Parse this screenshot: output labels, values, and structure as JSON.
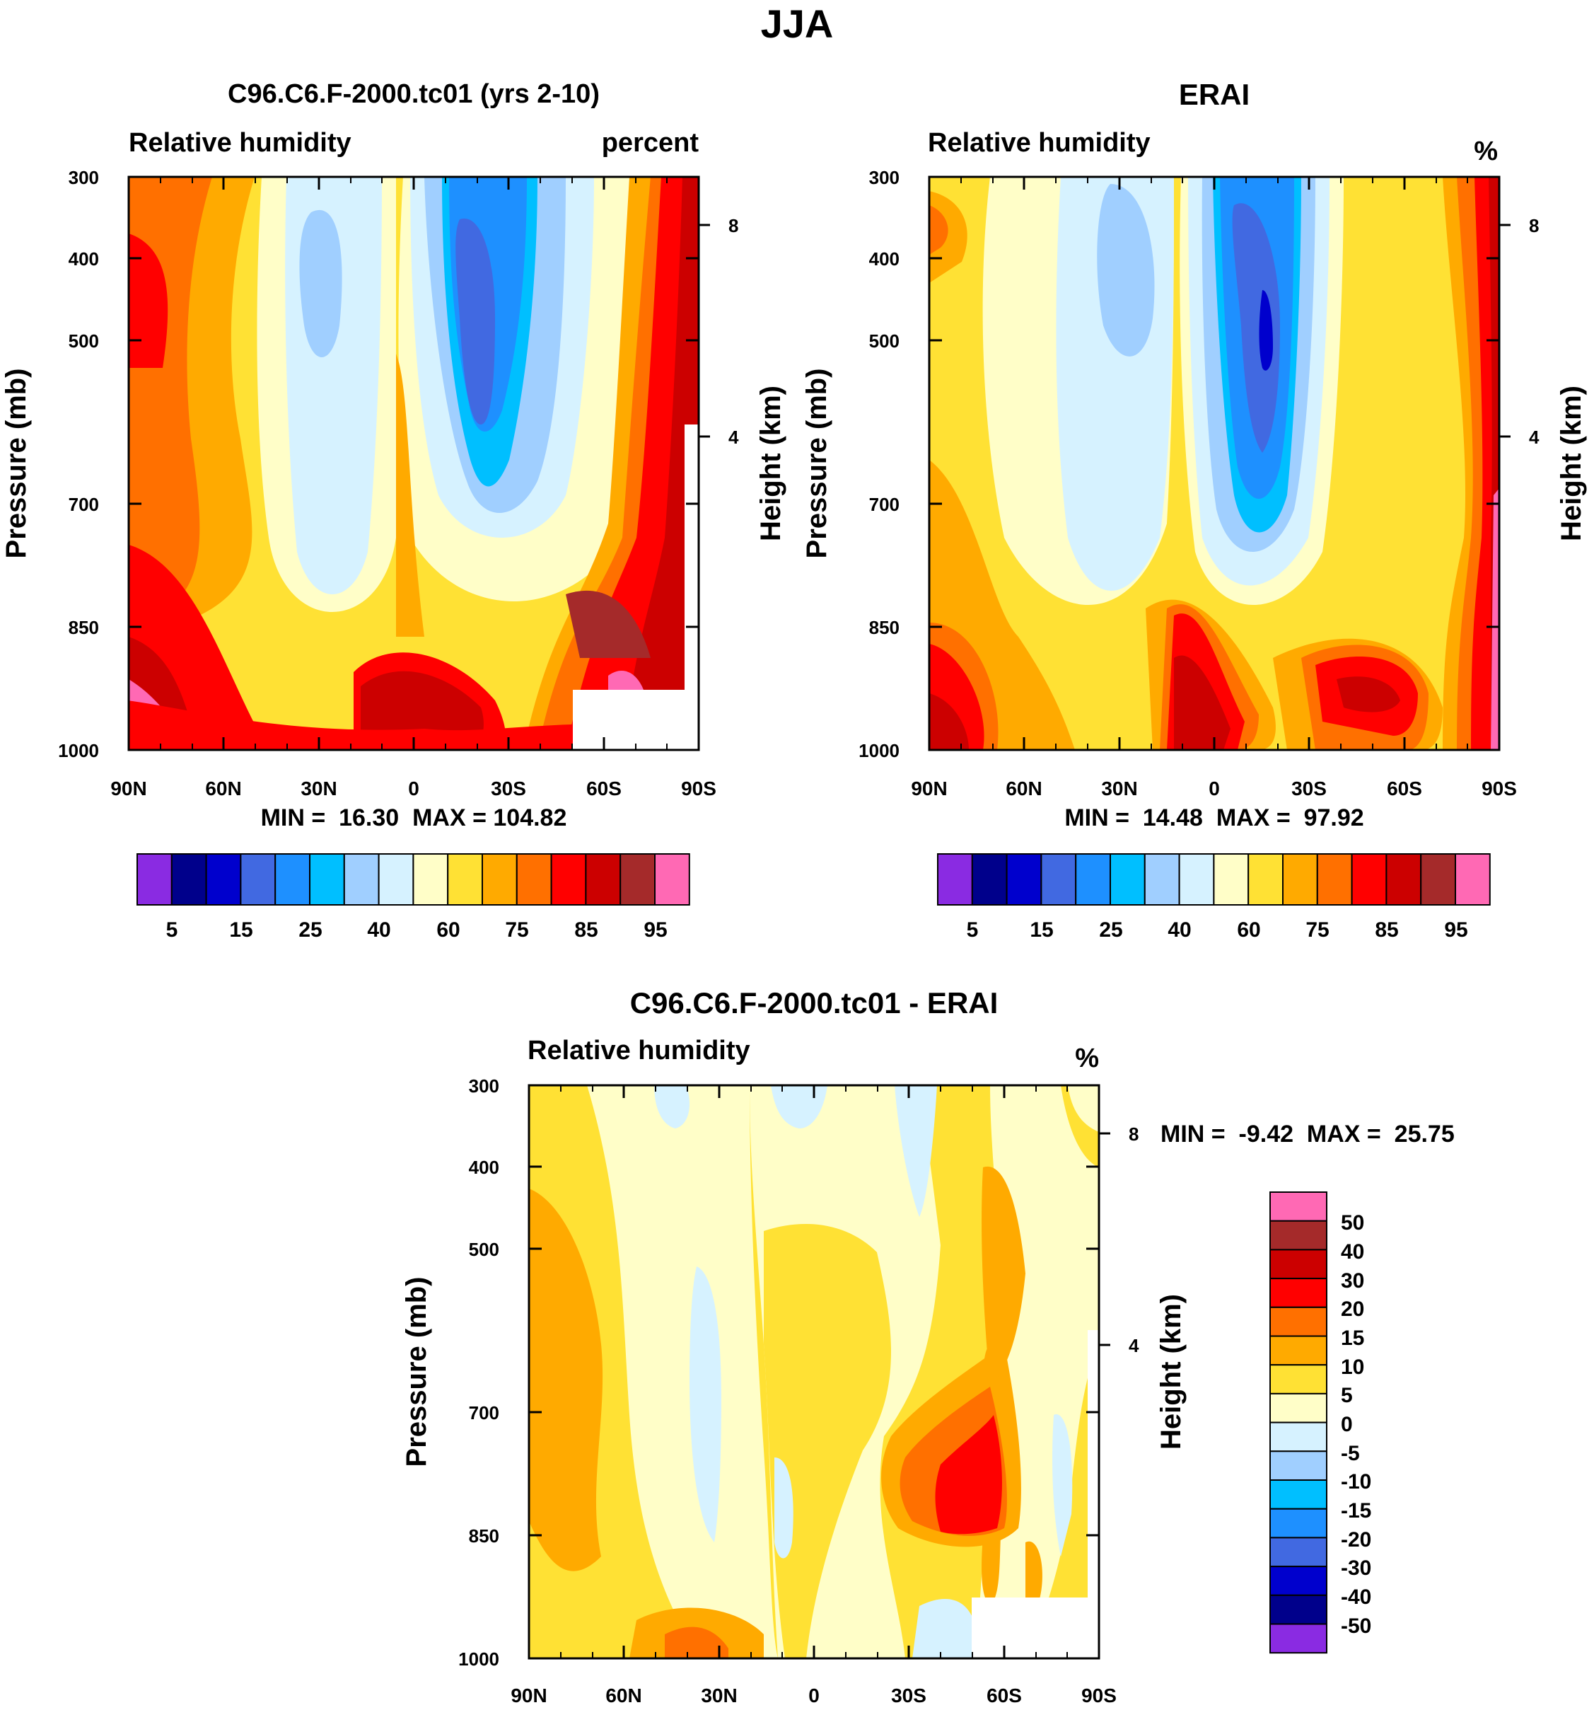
{
  "main_title": "JJA",
  "x_ticks": [
    "90N",
    "60N",
    "30N",
    "0",
    "30S",
    "60S",
    "90S"
  ],
  "pressure_ticks": [
    "300",
    "400",
    "500",
    "700",
    "850",
    "1000"
  ],
  "height_ticks": [
    "8",
    "4"
  ],
  "chart_data": [
    {
      "type": "heatmap",
      "title": "C96.C6.F-2000.tc01 (yrs 2-10)",
      "variable_label": "Relative humidity",
      "units_label": "percent",
      "ylabel": "Pressure (mb)",
      "ylabel_right": "Height (km)",
      "stats": "MIN =  16.30  MAX = 104.82",
      "min": 16.3,
      "max": 104.82,
      "colorbar_labels": [
        "5",
        "15",
        "25",
        "40",
        "60",
        "75",
        "85",
        "95"
      ],
      "xlim": [
        90,
        -90
      ],
      "ylim": [
        1000,
        300
      ]
    },
    {
      "type": "heatmap",
      "title": "ERAI",
      "variable_label": "Relative humidity",
      "units_label": "%",
      "ylabel": "Pressure (mb)",
      "ylabel_right": "Height (km)",
      "stats": "MIN =  14.48  MAX =  97.92",
      "min": 14.48,
      "max": 97.92,
      "colorbar_labels": [
        "5",
        "15",
        "25",
        "40",
        "60",
        "75",
        "85",
        "95"
      ],
      "xlim": [
        90,
        -90
      ],
      "ylim": [
        1000,
        300
      ]
    },
    {
      "type": "heatmap",
      "title": "C96.C6.F-2000.tc01 - ERAI",
      "variable_label": "Relative humidity",
      "units_label": "%",
      "ylabel": "Pressure (mb)",
      "ylabel_right": "Height (km)",
      "stats": "MIN =  -9.42  MAX =  25.75",
      "min": -9.42,
      "max": 25.75,
      "colorbar_labels": [
        "50",
        "40",
        "30",
        "20",
        "15",
        "10",
        "5",
        "0",
        "-5",
        "-10",
        "-15",
        "-20",
        "-30",
        "-40",
        "-50"
      ],
      "xlim": [
        90,
        -90
      ],
      "ylim": [
        1000,
        300
      ]
    }
  ],
  "colors": {
    "rh_scale": [
      "#8a2be2",
      "#00008b",
      "#0000cd",
      "#4169e1",
      "#1e90ff",
      "#00bfff",
      "#a0cfff",
      "#d6f2ff",
      "#fffec8",
      "#ffe134",
      "#ffaa00",
      "#ff7000",
      "#ff0000",
      "#cc0000",
      "#a52a2a",
      "#ff69b4"
    ],
    "diff_scale_top_to_bottom": [
      "#ff69b4",
      "#a52a2a",
      "#cc0000",
      "#ff0000",
      "#ff7000",
      "#ffaa00",
      "#ffe134",
      "#fffec8",
      "#d6f2ff",
      "#a0cfff",
      "#00bfff",
      "#1e90ff",
      "#4169e1",
      "#0000cd",
      "#00008b",
      "#8a2be2"
    ]
  }
}
